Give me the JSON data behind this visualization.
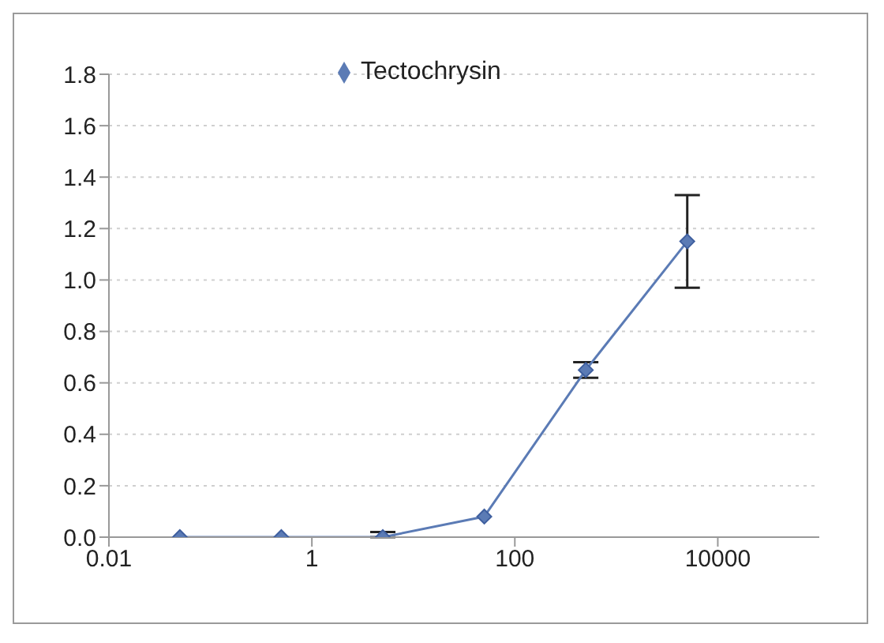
{
  "chart_data": {
    "type": "line",
    "x": [
      0.05,
      0.5,
      5,
      50,
      500,
      5000
    ],
    "series": [
      {
        "name": "Tectochrysin",
        "color": "#5b7bb5",
        "values": [
          0,
          0,
          0,
          0.08,
          0.65,
          1.15
        ],
        "errors": [
          null,
          null,
          [
            0,
            0.02
          ],
          null,
          0.03,
          0.18
        ]
      }
    ],
    "xlim": [
      0.01,
      100000
    ],
    "xticks": [
      0.01,
      1,
      100,
      10000
    ],
    "log": "x",
    "ylim": [
      0,
      1.8
    ],
    "yticks": [
      {
        "value": 0,
        "label": "0.0"
      },
      0.2,
      0.4,
      0.6,
      0.8,
      {
        "value": 1,
        "label": "1.0"
      },
      1.2,
      1.4,
      1.6,
      1.8
    ],
    "grid": "y",
    "legend": "top",
    "marker": "diamond",
    "line_style": "solid"
  }
}
